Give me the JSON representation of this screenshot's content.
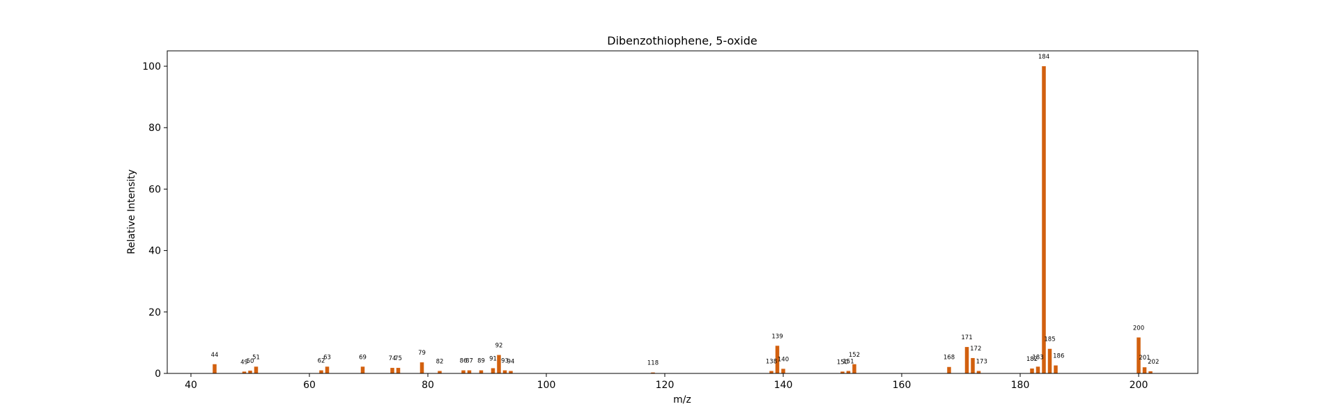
{
  "chart_data": {
    "type": "bar",
    "title": "Dibenzothiophene, 5-oxide",
    "xlabel": "m/z",
    "ylabel": "Relative Intensity",
    "xlim": [
      36,
      210
    ],
    "ylim": [
      0,
      105
    ],
    "xticks": [
      40,
      60,
      80,
      100,
      120,
      140,
      160,
      180,
      200
    ],
    "yticks": [
      0,
      20,
      40,
      60,
      80,
      100
    ],
    "bar_color": "#d2600f",
    "x": [
      44,
      49,
      50,
      51,
      62,
      63,
      69,
      74,
      75,
      79,
      82,
      86,
      87,
      89,
      91,
      92,
      93,
      94,
      118,
      138,
      139,
      140,
      150,
      151,
      152,
      168,
      171,
      172,
      173,
      182,
      183,
      184,
      185,
      186,
      200,
      201,
      202
    ],
    "values": [
      3.0,
      0.6,
      0.9,
      2.2,
      1.0,
      2.2,
      2.2,
      1.8,
      1.8,
      3.6,
      0.8,
      1.0,
      1.0,
      1.0,
      1.7,
      6.0,
      1.0,
      0.8,
      0.3,
      0.8,
      9.0,
      1.5,
      0.6,
      0.8,
      3.0,
      2.1,
      8.6,
      5.0,
      0.8,
      1.6,
      2.2,
      100,
      8.0,
      2.6,
      11.7,
      2.0,
      0.7
    ],
    "labels": [
      "44",
      "49",
      "50",
      "51",
      "62",
      "63",
      "69",
      "74",
      "75",
      "79",
      "82",
      "86",
      "87",
      "89",
      "91",
      "92",
      "93",
      "94",
      "118",
      "138",
      "139",
      "140",
      "150",
      "151",
      "152",
      "168",
      "171",
      "172",
      "173",
      "182",
      "183",
      "184",
      "185",
      "186",
      "200",
      "201",
      "202"
    ],
    "label_offsets": [
      0,
      0,
      0,
      0,
      0,
      0,
      0,
      0,
      0,
      0,
      0,
      0,
      0,
      0,
      0,
      0,
      0,
      0,
      0,
      0,
      0,
      0,
      0,
      0,
      0,
      0,
      0,
      0.5,
      0.5,
      0,
      0,
      0,
      0,
      0.5,
      0,
      0,
      0.5
    ]
  }
}
